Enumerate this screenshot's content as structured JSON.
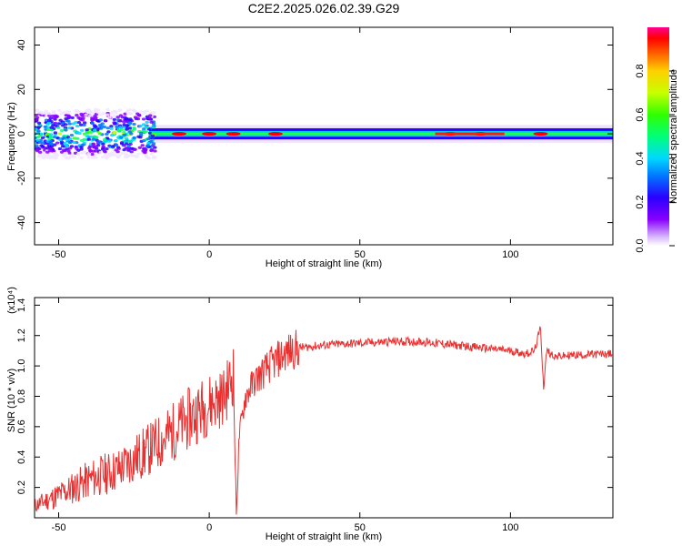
{
  "title": "C2E2.2025.026.02.39.G29",
  "chart_data": [
    {
      "type": "heatmap",
      "xlabel": "Height of straight line (km)",
      "ylabel": "Frequency (Hz)",
      "xlim": [
        -58,
        134
      ],
      "ylim": [
        -50,
        48
      ],
      "xticks": [
        -50,
        0,
        50,
        100
      ],
      "yticks": [
        -40,
        -20,
        0,
        20,
        40
      ],
      "colorbar": {
        "label": "Normalized spectral amplitude",
        "range": [
          0,
          1
        ],
        "ticks": [
          "0.0",
          "0.2",
          "0.4",
          "0.6",
          "0.8"
        ],
        "tick_values": [
          0.0,
          0.2,
          0.4,
          0.6,
          0.8
        ],
        "colormap": "rainbow (magenta-blue-cyan-green-yellow-red)"
      },
      "description_points": {
        "noisy_segment_x": [
          -58,
          -20
        ],
        "peak_band_center_hz": 0,
        "strong_peaks_x": [
          -10,
          0,
          8,
          22,
          80,
          90,
          110
        ]
      }
    },
    {
      "type": "line",
      "xlabel": "Height of straight line (km)",
      "ylabel": "SNR (10 * v/v)",
      "y_multiplier_label": "(x10⁴)",
      "xlim": [
        -58,
        134
      ],
      "ylim": [
        0,
        1.45
      ],
      "xticks": [
        -50,
        0,
        50,
        100
      ],
      "yticks": [
        0.2,
        0.4,
        0.6,
        0.8,
        1.0,
        1.2,
        1.4
      ],
      "series": [
        {
          "color": "#e83030",
          "x": [
            -58,
            -50,
            -40,
            -30,
            -20,
            -15,
            -10,
            -5,
            0,
            5,
            8,
            9,
            10,
            12,
            15,
            20,
            25,
            30,
            40,
            50,
            60,
            70,
            80,
            90,
            100,
            105,
            108,
            110,
            111,
            112,
            115,
            120,
            134
          ],
          "y": [
            0.08,
            0.15,
            0.25,
            0.32,
            0.45,
            0.52,
            0.6,
            0.68,
            0.75,
            0.8,
            0.95,
            0.02,
            0.55,
            0.8,
            0.9,
            1.0,
            1.08,
            1.12,
            1.14,
            1.15,
            1.16,
            1.16,
            1.14,
            1.12,
            1.1,
            1.08,
            1.1,
            1.25,
            0.85,
            1.1,
            1.06,
            1.07,
            1.08
          ]
        }
      ]
    }
  ]
}
